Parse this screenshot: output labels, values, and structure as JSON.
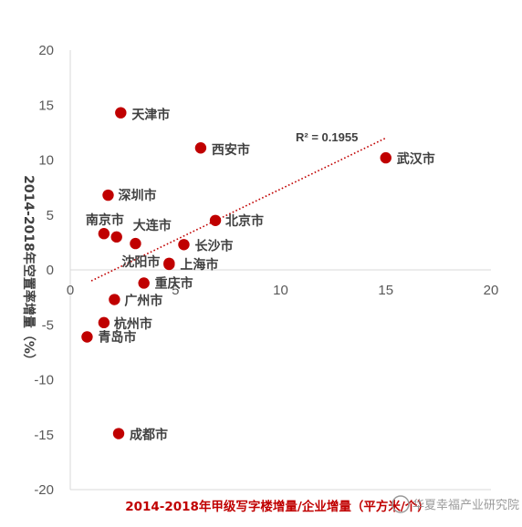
{
  "chart_data": {
    "type": "scatter",
    "xlabel": "2014-2018年甲级写字楼增量/企业增量（平方米/个）",
    "ylabel": "2014-2018年空置率增量（%）",
    "xlim": [
      0,
      20
    ],
    "ylim": [
      -20,
      20
    ],
    "x_ticks": [
      0,
      5,
      10,
      15,
      20
    ],
    "y_ticks": [
      -20,
      -15,
      -10,
      -5,
      0,
      5,
      10,
      15,
      20
    ],
    "grid": false,
    "marker_color": "#c00000",
    "trendline": {
      "type": "linear",
      "color": "#c00000",
      "style": "dotted",
      "x_range": [
        1,
        15
      ],
      "y_range": [
        -1.0,
        12.0
      ],
      "r2_label": "R² = 0.1955"
    },
    "points": [
      {
        "label": "天津市",
        "x": 2.4,
        "y": 14.3
      },
      {
        "label": "西安市",
        "x": 6.2,
        "y": 11.1
      },
      {
        "label": "武汉市",
        "x": 15.0,
        "y": 10.2
      },
      {
        "label": "深圳市",
        "x": 1.8,
        "y": 6.8
      },
      {
        "label": "北京市",
        "x": 6.9,
        "y": 4.5
      },
      {
        "label": "南京市",
        "x": 1.6,
        "y": 3.3
      },
      {
        "label": "大连市",
        "x": 2.2,
        "y": 3.0
      },
      {
        "label": "长沙市",
        "x": 5.4,
        "y": 2.3
      },
      {
        "label": "",
        "x": 3.1,
        "y": 2.4
      },
      {
        "label": "沈阳市",
        "x": 4.7,
        "y": 0.6
      },
      {
        "label": "上海市",
        "x": 4.7,
        "y": 0.5
      },
      {
        "label": "重庆市",
        "x": 3.5,
        "y": -1.2
      },
      {
        "label": "广州市",
        "x": 2.1,
        "y": -2.7
      },
      {
        "label": "杭州市",
        "x": 1.6,
        "y": -4.8
      },
      {
        "label": "青岛市",
        "x": 0.8,
        "y": -6.1
      },
      {
        "label": "成都市",
        "x": 2.3,
        "y": -14.9
      }
    ]
  },
  "watermark": "华夏幸福产业研究院"
}
